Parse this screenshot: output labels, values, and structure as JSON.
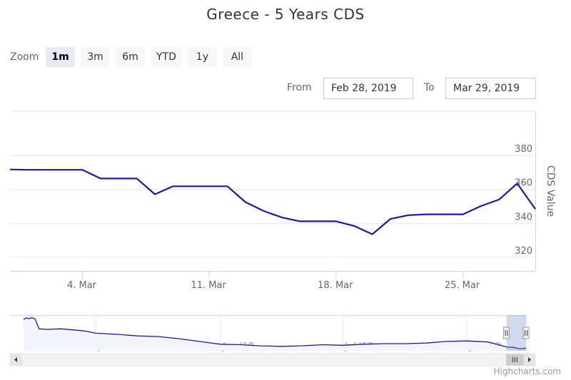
{
  "title": "Greece - 5 Years CDS",
  "zoom": {
    "label": "Zoom",
    "buttons": [
      "1m",
      "3m",
      "6m",
      "YTD",
      "1y",
      "All"
    ],
    "active": "1m"
  },
  "range": {
    "from_label": "From",
    "from_value": "Feb 28, 2019",
    "to_label": "To",
    "to_value": "Mar 29, 2019"
  },
  "credits": "Highcharts.com",
  "colors": {
    "series": "#1a1aa6",
    "navigator_series": "#1a1aa6",
    "navigator_fill": "#f2f3fb",
    "grid": "#e6e6e6",
    "axis_text": "#666666"
  },
  "chart_data": {
    "type": "line",
    "title": "Greece - 5 Years CDS",
    "ylabel": "CDS Value",
    "ylim": [
      312,
      406
    ],
    "yticks": [
      320,
      340,
      360,
      380
    ],
    "xticks": [
      {
        "label": "4. Mar",
        "date": "2019-03-04"
      },
      {
        "label": "11. Mar",
        "date": "2019-03-11"
      },
      {
        "label": "18. Mar",
        "date": "2019-03-18"
      },
      {
        "label": "25. Mar",
        "date": "2019-03-25"
      }
    ],
    "xlim": [
      "2019-02-28",
      "2019-03-29"
    ],
    "grid": true,
    "series": [
      {
        "points": [
          [
            "2019-02-28",
            371.7
          ],
          [
            "2019-03-01",
            371.5
          ],
          [
            "2019-03-04",
            371.5
          ],
          [
            "2019-03-05",
            366.4
          ],
          [
            "2019-03-06",
            366.4
          ],
          [
            "2019-03-07",
            366.4
          ],
          [
            "2019-03-08",
            357.1
          ],
          [
            "2019-03-09",
            361.8
          ],
          [
            "2019-03-11",
            361.8
          ],
          [
            "2019-03-12",
            361.8
          ],
          [
            "2019-03-13",
            352.5
          ],
          [
            "2019-03-14",
            347.3
          ],
          [
            "2019-03-15",
            343.5
          ],
          [
            "2019-03-16",
            341.2
          ],
          [
            "2019-03-18",
            341.2
          ],
          [
            "2019-03-19",
            338.5
          ],
          [
            "2019-03-20",
            333.6
          ],
          [
            "2019-03-21",
            342.6
          ],
          [
            "2019-03-22",
            344.8
          ],
          [
            "2019-03-23",
            345.3
          ],
          [
            "2019-03-25",
            345.3
          ],
          [
            "2019-03-26",
            350.2
          ],
          [
            "2019-03-27",
            354.0
          ],
          [
            "2019-03-28",
            363.5
          ],
          [
            "2019-03-29",
            348.4
          ]
        ]
      }
    ],
    "navigator": {
      "xticks": [
        {
          "label": "Jul '17",
          "date": "2017-07-01"
        },
        {
          "label": "Jan '18",
          "date": "2018-01-01"
        },
        {
          "label": "Jul '18",
          "date": "2018-07-01"
        },
        {
          "label": "Jan '19",
          "date": "2019-01-01"
        }
      ],
      "xlim": [
        "2017-03-16",
        "2019-03-29"
      ],
      "selected": [
        "2019-02-28",
        "2019-03-29"
      ],
      "points": [
        [
          "2017-03-16",
          870
        ],
        [
          "2017-03-20",
          900
        ],
        [
          "2017-03-24",
          885
        ],
        [
          "2017-03-28",
          905
        ],
        [
          "2017-04-02",
          880
        ],
        [
          "2017-04-08",
          700
        ],
        [
          "2017-04-20",
          690
        ],
        [
          "2017-05-10",
          700
        ],
        [
          "2017-05-30",
          680
        ],
        [
          "2017-06-15",
          660
        ],
        [
          "2017-07-01",
          620
        ],
        [
          "2017-08-01",
          600
        ],
        [
          "2017-09-01",
          570
        ],
        [
          "2017-10-01",
          560
        ],
        [
          "2017-11-01",
          520
        ],
        [
          "2017-12-01",
          470
        ],
        [
          "2018-01-01",
          420
        ],
        [
          "2018-02-01",
          410
        ],
        [
          "2018-03-01",
          390
        ],
        [
          "2018-04-01",
          380
        ],
        [
          "2018-05-01",
          390
        ],
        [
          "2018-06-01",
          410
        ],
        [
          "2018-07-01",
          400
        ],
        [
          "2018-08-01",
          420
        ],
        [
          "2018-09-01",
          430
        ],
        [
          "2018-10-01",
          430
        ],
        [
          "2018-11-01",
          440
        ],
        [
          "2018-12-01",
          470
        ],
        [
          "2019-01-01",
          480
        ],
        [
          "2019-02-01",
          460
        ],
        [
          "2019-02-28",
          372
        ],
        [
          "2019-03-10",
          362
        ],
        [
          "2019-03-20",
          334
        ],
        [
          "2019-03-29",
          348
        ]
      ],
      "ylim": [
        300,
        950
      ]
    }
  }
}
